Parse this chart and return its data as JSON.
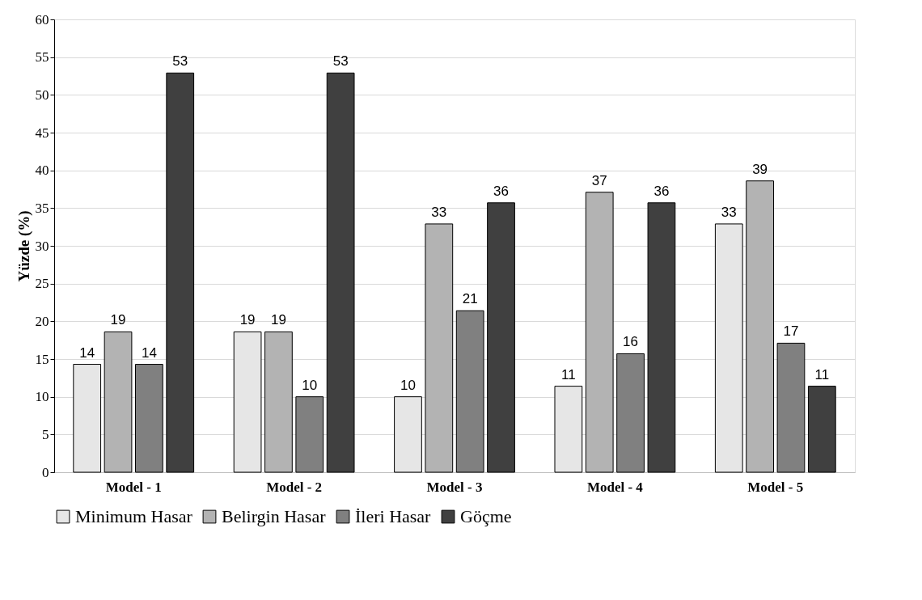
{
  "chart_data": {
    "type": "bar",
    "ylabel": "Yüzde (%)",
    "categories": [
      "Model - 1",
      "Model - 2",
      "Model - 3",
      "Model - 4",
      "Model - 5"
    ],
    "series": [
      {
        "name": "Minimum Hasar",
        "color": "#e6e6e6",
        "values": [
          14.3,
          18.6,
          10,
          11.4,
          32.9
        ],
        "value_labels": [
          "14",
          "19",
          "10",
          "11",
          "33"
        ]
      },
      {
        "name": "Belirgin Hasar",
        "color": "#b3b3b3",
        "values": [
          18.6,
          18.6,
          32.9,
          37.1,
          38.6
        ],
        "value_labels": [
          "19",
          "19",
          "33",
          "37",
          "39"
        ]
      },
      {
        "name": "İleri Hasar",
        "color": "#808080",
        "values": [
          14.3,
          10,
          21.4,
          15.7,
          17.1
        ],
        "value_labels": [
          "14",
          "10",
          "21",
          "16",
          "17"
        ]
      },
      {
        "name": "Göçme",
        "color": "#404040",
        "values": [
          52.9,
          52.9,
          35.7,
          35.7,
          11.4
        ],
        "value_labels": [
          "53",
          "53",
          "36",
          "36",
          "11"
        ]
      }
    ],
    "ylim": [
      0,
      60
    ],
    "yticks": [
      0,
      5,
      10,
      15,
      20,
      25,
      30,
      35,
      40,
      45,
      50,
      55,
      60
    ],
    "grid": "y",
    "legend": "bottom"
  }
}
